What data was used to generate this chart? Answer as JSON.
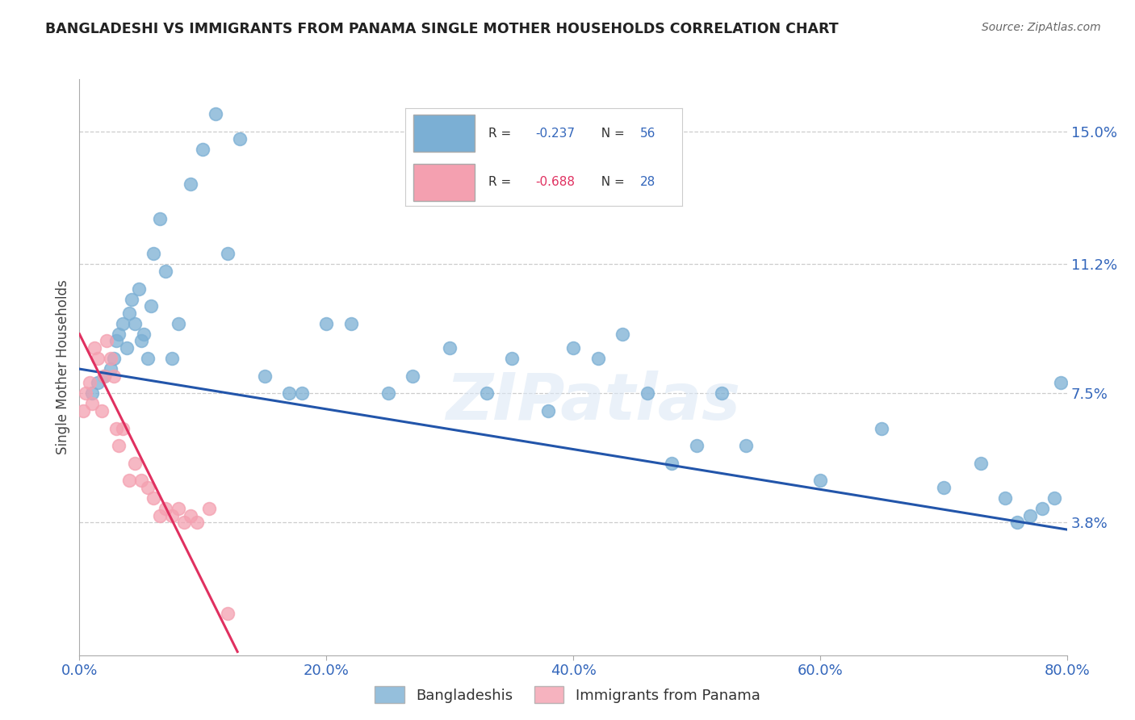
{
  "title": "BANGLADESHI VS IMMIGRANTS FROM PANAMA SINGLE MOTHER HOUSEHOLDS CORRELATION CHART",
  "source": "Source: ZipAtlas.com",
  "ylabel": "Single Mother Households",
  "xlim": [
    0.0,
    80.0
  ],
  "ylim": [
    0.0,
    16.5
  ],
  "yticks": [
    3.8,
    7.5,
    11.2,
    15.0
  ],
  "xticks": [
    0.0,
    20.0,
    40.0,
    60.0,
    80.0
  ],
  "xtick_labels": [
    "0.0%",
    "20.0%",
    "40.0%",
    "60.0%",
    "80.0%"
  ],
  "ytick_labels": [
    "3.8%",
    "7.5%",
    "11.2%",
    "15.0%"
  ],
  "grid_color": "#cccccc",
  "background_color": "#ffffff",
  "blue_color": "#7bafd4",
  "pink_color": "#f4a0b0",
  "blue_line_color": "#2255aa",
  "pink_line_color": "#e03060",
  "legend_r_blue": "R = -0.237",
  "legend_n_blue": "N = 56",
  "legend_r_pink": "R = -0.688",
  "legend_n_pink": "N = 28",
  "legend_label_blue": "Bangladeshis",
  "legend_label_pink": "Immigrants from Panama",
  "watermark": "ZIPatlas",
  "blue_x": [
    1.0,
    1.5,
    2.0,
    2.5,
    2.8,
    3.0,
    3.2,
    3.5,
    3.8,
    4.0,
    4.2,
    4.5,
    4.8,
    5.0,
    5.2,
    5.5,
    5.8,
    6.0,
    6.5,
    7.0,
    7.5,
    8.0,
    9.0,
    10.0,
    11.0,
    12.0,
    13.0,
    15.0,
    17.0,
    18.0,
    20.0,
    22.0,
    25.0,
    27.0,
    30.0,
    33.0,
    35.0,
    38.0,
    40.0,
    42.0,
    44.0,
    46.0,
    48.0,
    50.0,
    52.0,
    54.0,
    60.0,
    65.0,
    70.0,
    73.0,
    75.0,
    76.0,
    77.0,
    78.0,
    79.0,
    79.5
  ],
  "blue_y": [
    7.5,
    7.8,
    8.0,
    8.2,
    8.5,
    9.0,
    9.2,
    9.5,
    8.8,
    9.8,
    10.2,
    9.5,
    10.5,
    9.0,
    9.2,
    8.5,
    10.0,
    11.5,
    12.5,
    11.0,
    8.5,
    9.5,
    13.5,
    14.5,
    15.5,
    11.5,
    14.8,
    8.0,
    7.5,
    7.5,
    9.5,
    9.5,
    7.5,
    8.0,
    8.8,
    7.5,
    8.5,
    7.0,
    8.8,
    8.5,
    9.2,
    7.5,
    5.5,
    6.0,
    7.5,
    6.0,
    5.0,
    6.5,
    4.8,
    5.5,
    4.5,
    3.8,
    4.0,
    4.2,
    4.5,
    7.8
  ],
  "pink_x": [
    0.3,
    0.5,
    0.8,
    1.0,
    1.2,
    1.5,
    1.8,
    2.0,
    2.2,
    2.5,
    2.8,
    3.0,
    3.2,
    3.5,
    4.0,
    4.5,
    5.0,
    5.5,
    6.0,
    6.5,
    7.0,
    7.5,
    8.0,
    8.5,
    9.0,
    9.5,
    10.5,
    12.0
  ],
  "pink_y": [
    7.0,
    7.5,
    7.8,
    7.2,
    8.8,
    8.5,
    7.0,
    8.0,
    9.0,
    8.5,
    8.0,
    6.5,
    6.0,
    6.5,
    5.0,
    5.5,
    5.0,
    4.8,
    4.5,
    4.0,
    4.2,
    4.0,
    4.2,
    3.8,
    4.0,
    3.8,
    4.2,
    1.2
  ],
  "blue_line_x0": 0.0,
  "blue_line_y0": 8.2,
  "blue_line_x1": 80.0,
  "blue_line_y1": 3.6,
  "pink_line_x0": 0.0,
  "pink_line_y0": 9.2,
  "pink_line_x1": 12.8,
  "pink_line_y1": 0.1
}
